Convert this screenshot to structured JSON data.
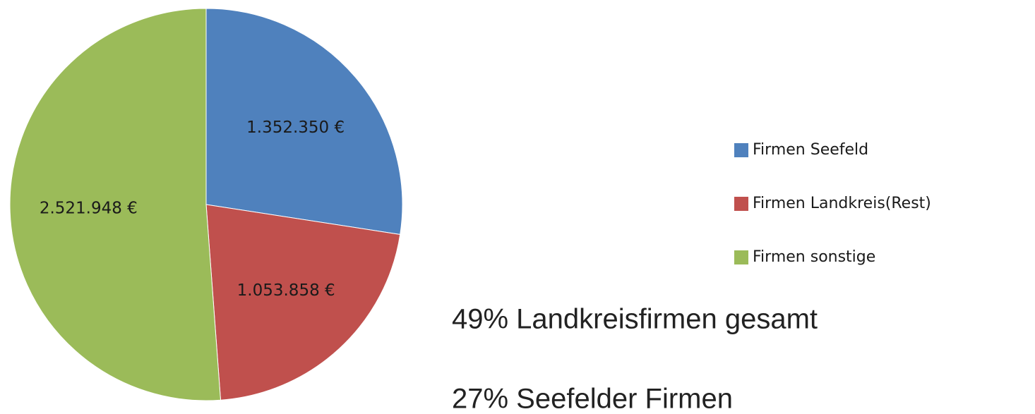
{
  "chart_data": {
    "type": "pie",
    "categories": [
      "Firmen Seefeld",
      "Firmen Landkreis(Rest)",
      "Firmen sonstige"
    ],
    "values": [
      1352350,
      1053858,
      2521948
    ],
    "value_labels": [
      "1.352.350 €",
      "1.053.858 €",
      "2.521.948 €"
    ],
    "colors": [
      "#4f81bd",
      "#c0504d",
      "#9bbb59"
    ],
    "legend": "right",
    "annotations": [
      "49% Landkreisfirmen gesamt",
      "27% Seefelder Firmen"
    ]
  }
}
